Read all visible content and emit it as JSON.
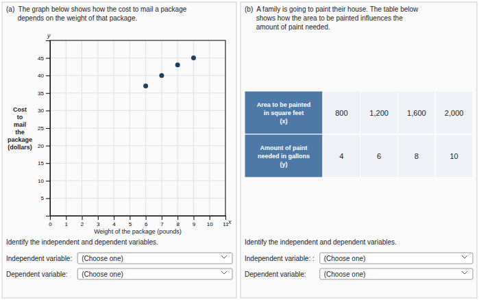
{
  "chart_data": [
    {
      "type": "scatter",
      "title": "(a)  The graph below shows how the cost to mail a package\n      depends on the weight of that package.",
      "xlabel": "Weight of the package (pounds)",
      "ylabel": "Cost\nto\nmail\nthe\npackage\n(dollars)",
      "x": [
        6,
        7,
        8,
        9
      ],
      "values": [
        37,
        40,
        43,
        45
      ],
      "color": "#1e4060",
      "xlim": [
        0,
        11
      ],
      "ylim": [
        0,
        50
      ],
      "xticks": [
        0,
        1,
        2,
        3,
        4,
        5,
        6,
        7,
        8,
        9,
        10,
        11
      ],
      "yticks": [
        5,
        10,
        15,
        20,
        25,
        30,
        35,
        40,
        45
      ],
      "grid": true,
      "annotations": [
        "y",
        "x",
        "Identify the independent and dependent variables.",
        "Independent variable:",
        "Dependent variable:",
        "(Choose one)"
      ]
    },
    {
      "type": "table",
      "title": "(b)  A family is going to paint their house. The table below\n      shows how the area to be painted influences the\n      amount of paint needed.",
      "series": [
        {
          "name": "Area to be painted\nin square feet\n(x)",
          "values": [
            800,
            1200,
            1600,
            2000
          ],
          "value_labels": [
            "800",
            "1,200",
            "1,600",
            "2,000"
          ]
        },
        {
          "name": "Amount of paint\nneeded in gallons\n(y)",
          "values": [
            4,
            6,
            8,
            10
          ]
        }
      ],
      "data_labels": true,
      "annotations": [
        "Identify the independent and dependent variables.",
        "Independent variable: :",
        "Dependent variable:",
        "(Choose one)"
      ]
    }
  ]
}
